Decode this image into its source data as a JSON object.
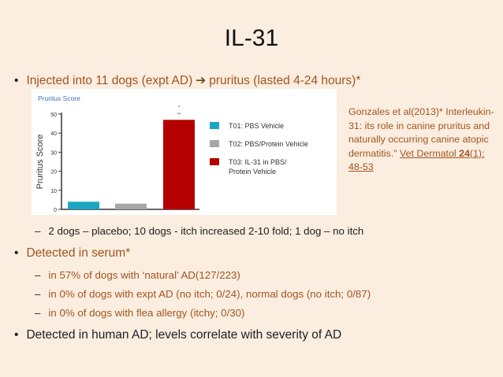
{
  "slide": {
    "title": "IL-31",
    "bullet1": {
      "dot": "•",
      "text_before": "Injected into 11 dogs (expt AD)",
      "arrow": "➔",
      "text_after": "pruritus (lasted 4-24 hours)*"
    },
    "sub1": {
      "dash": "–",
      "text": "2 dogs – placebo; 10 dogs - itch increased 2-10 fold; 1 dog – no itch"
    },
    "bullet2": {
      "dot": "•",
      "text": "Detected in serum*"
    },
    "sub2": [
      {
        "dash": "–",
        "text": "in 57% of dogs with ‘natural’ AD(127/223)"
      },
      {
        "dash": "–",
        "text": "in 0% of dogs with expt AD (no itch; 0/24), normal dogs (no itch; 0/87)"
      },
      {
        "dash": "–",
        "text": "in 0% of dogs with flea allergy (itchy; 0/30)"
      }
    ],
    "bullet3": {
      "dot": "•",
      "text": "Detected in human AD; levels correlate with severity of AD"
    },
    "reference": {
      "line_main": "Gonzales et al(2013)* Interleukin-31: its role in canine pruritus and naturally occurring canine atopic dermatitis.\"",
      "journal": "Vet Dermatol",
      "volume": "24",
      "issue_pages": "(1): 48-53"
    }
  },
  "chart_data": {
    "type": "bar",
    "title": "Pruritus Score",
    "ylabel": "Pruritus Score",
    "xlabel": "",
    "ylim": [
      0,
      50
    ],
    "yticks": [
      0,
      10,
      20,
      30,
      40,
      50
    ],
    "ytick_labels": [
      "0",
      "10",
      "20",
      "30",
      "40",
      "50"
    ],
    "categories": [
      "T01: PBS Vehicle",
      "T02: PBS/Protein Vehicle",
      "T03: IL-31 in PBS/ Protein Vehicle"
    ],
    "values": [
      4,
      3,
      47
    ],
    "colors": [
      "#1aa6c0",
      "#a6a6a6",
      "#b40000"
    ],
    "significance": {
      "star1": "*",
      "star2": "**"
    },
    "legend_position": "right",
    "legend": [
      {
        "label_lines": [
          "T01: PBS Vehicle"
        ]
      },
      {
        "label_lines": [
          "T02: PBS/Protein Vehicle"
        ]
      },
      {
        "label_lines": [
          "T03: IL-31 in PBS/",
          "Protein Vehicle"
        ]
      }
    ]
  }
}
